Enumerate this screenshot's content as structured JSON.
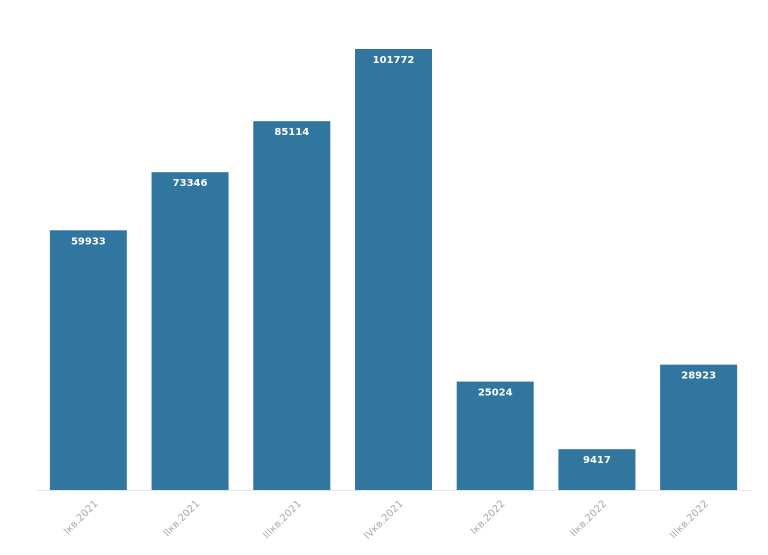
{
  "chart_data": {
    "type": "bar",
    "categories": [
      "Iкв.2021",
      "IIкв.2021",
      "IIIкв.2021",
      "IVкв.2021",
      "Iкв.2022",
      "IIкв.2022",
      "IIIкв.2022"
    ],
    "values": [
      59933,
      73346,
      85114,
      101772,
      25024,
      9417,
      28923
    ],
    "color": "#31769f"
  }
}
